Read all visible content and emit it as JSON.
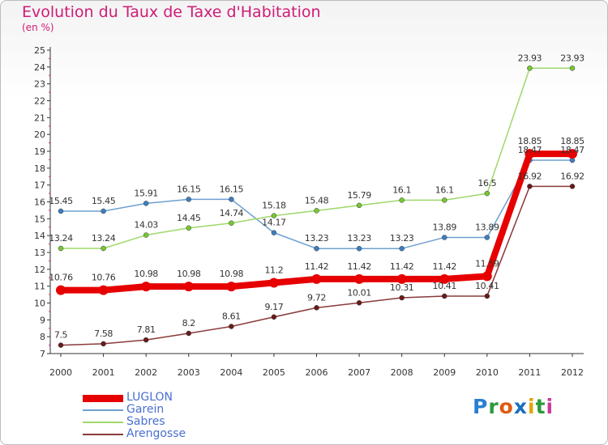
{
  "header": {
    "title": "Evolution du Taux de Taxe d'Habitation",
    "subtitle": "(en %)"
  },
  "logo": {
    "text": "Proxiti",
    "colors": [
      "#2a7fd1",
      "#2a9a3a",
      "#e05a10",
      "#1a6fbf",
      "#e2a400",
      "#2a9a3a",
      "#c83a9a"
    ]
  },
  "chart_data": {
    "type": "line",
    "categories": [
      "2000",
      "2001",
      "2002",
      "2003",
      "2004",
      "2005",
      "2006",
      "2007",
      "2008",
      "2009",
      "2010",
      "2011",
      "2012"
    ],
    "y_ticks": [
      "7",
      "8",
      "9",
      "10",
      "11",
      "12",
      "13",
      "14",
      "15",
      "16",
      "17",
      "18",
      "19",
      "20",
      "21",
      "22",
      "23",
      "24",
      "25"
    ],
    "ylim": [
      7,
      25
    ],
    "grid": false,
    "series": [
      {
        "name": "LUGLON",
        "color": "#e60000",
        "marker_color": "#e60000",
        "label_color": "#333333",
        "bold": true,
        "values": [
          10.76,
          10.76,
          10.98,
          10.98,
          10.98,
          11.2,
          11.42,
          11.42,
          11.42,
          11.42,
          11.59,
          18.85,
          18.85
        ],
        "labels": [
          "10.76",
          "10.76",
          "10.98",
          "10.98",
          "10.98",
          "11.2",
          "11.42",
          "11.42",
          "11.42",
          "11.42",
          "11.59",
          "18.85",
          "18.85"
        ]
      },
      {
        "name": "Garein",
        "color": "#6fa0cf",
        "marker_color": "#3d7fc1",
        "label_color": "#333333",
        "bold": false,
        "values": [
          15.45,
          15.45,
          15.91,
          16.15,
          16.15,
          14.17,
          13.23,
          13.23,
          13.23,
          13.89,
          13.89,
          18.47,
          18.47
        ],
        "labels": [
          "15.45",
          "15.45",
          "15.91",
          "16.15",
          "16.15",
          "14.17",
          "13.23",
          "13.23",
          "13.23",
          "13.89",
          "13.89",
          "18.47",
          "18.47"
        ]
      },
      {
        "name": "Sabres",
        "color": "#9fd86a",
        "marker_color": "#78c832",
        "label_color": "#333333",
        "bold": false,
        "values": [
          13.24,
          13.24,
          14.03,
          14.45,
          14.74,
          15.18,
          15.48,
          15.79,
          16.1,
          16.1,
          16.5,
          23.93,
          23.93
        ],
        "labels": [
          "13.24",
          "13.24",
          "14.03",
          "14.45",
          "14.74",
          "15.18",
          "15.48",
          "15.79",
          "16.1",
          "16.1",
          "16.5",
          "23.93",
          "23.93"
        ]
      },
      {
        "name": "Arengosse",
        "color": "#8a3a3a",
        "marker_color": "#6a1a1a",
        "label_color": "#333333",
        "bold": false,
        "values": [
          7.5,
          7.58,
          7.81,
          8.2,
          8.61,
          9.17,
          9.72,
          10.01,
          10.31,
          10.41,
          10.41,
          16.92,
          16.92
        ],
        "labels": [
          "7.5",
          "7.58",
          "7.81",
          "8.2",
          "8.61",
          "9.17",
          "9.72",
          "10.01",
          "10.31",
          "10.41",
          "10.41",
          "16.92",
          "16.92"
        ]
      }
    ]
  }
}
